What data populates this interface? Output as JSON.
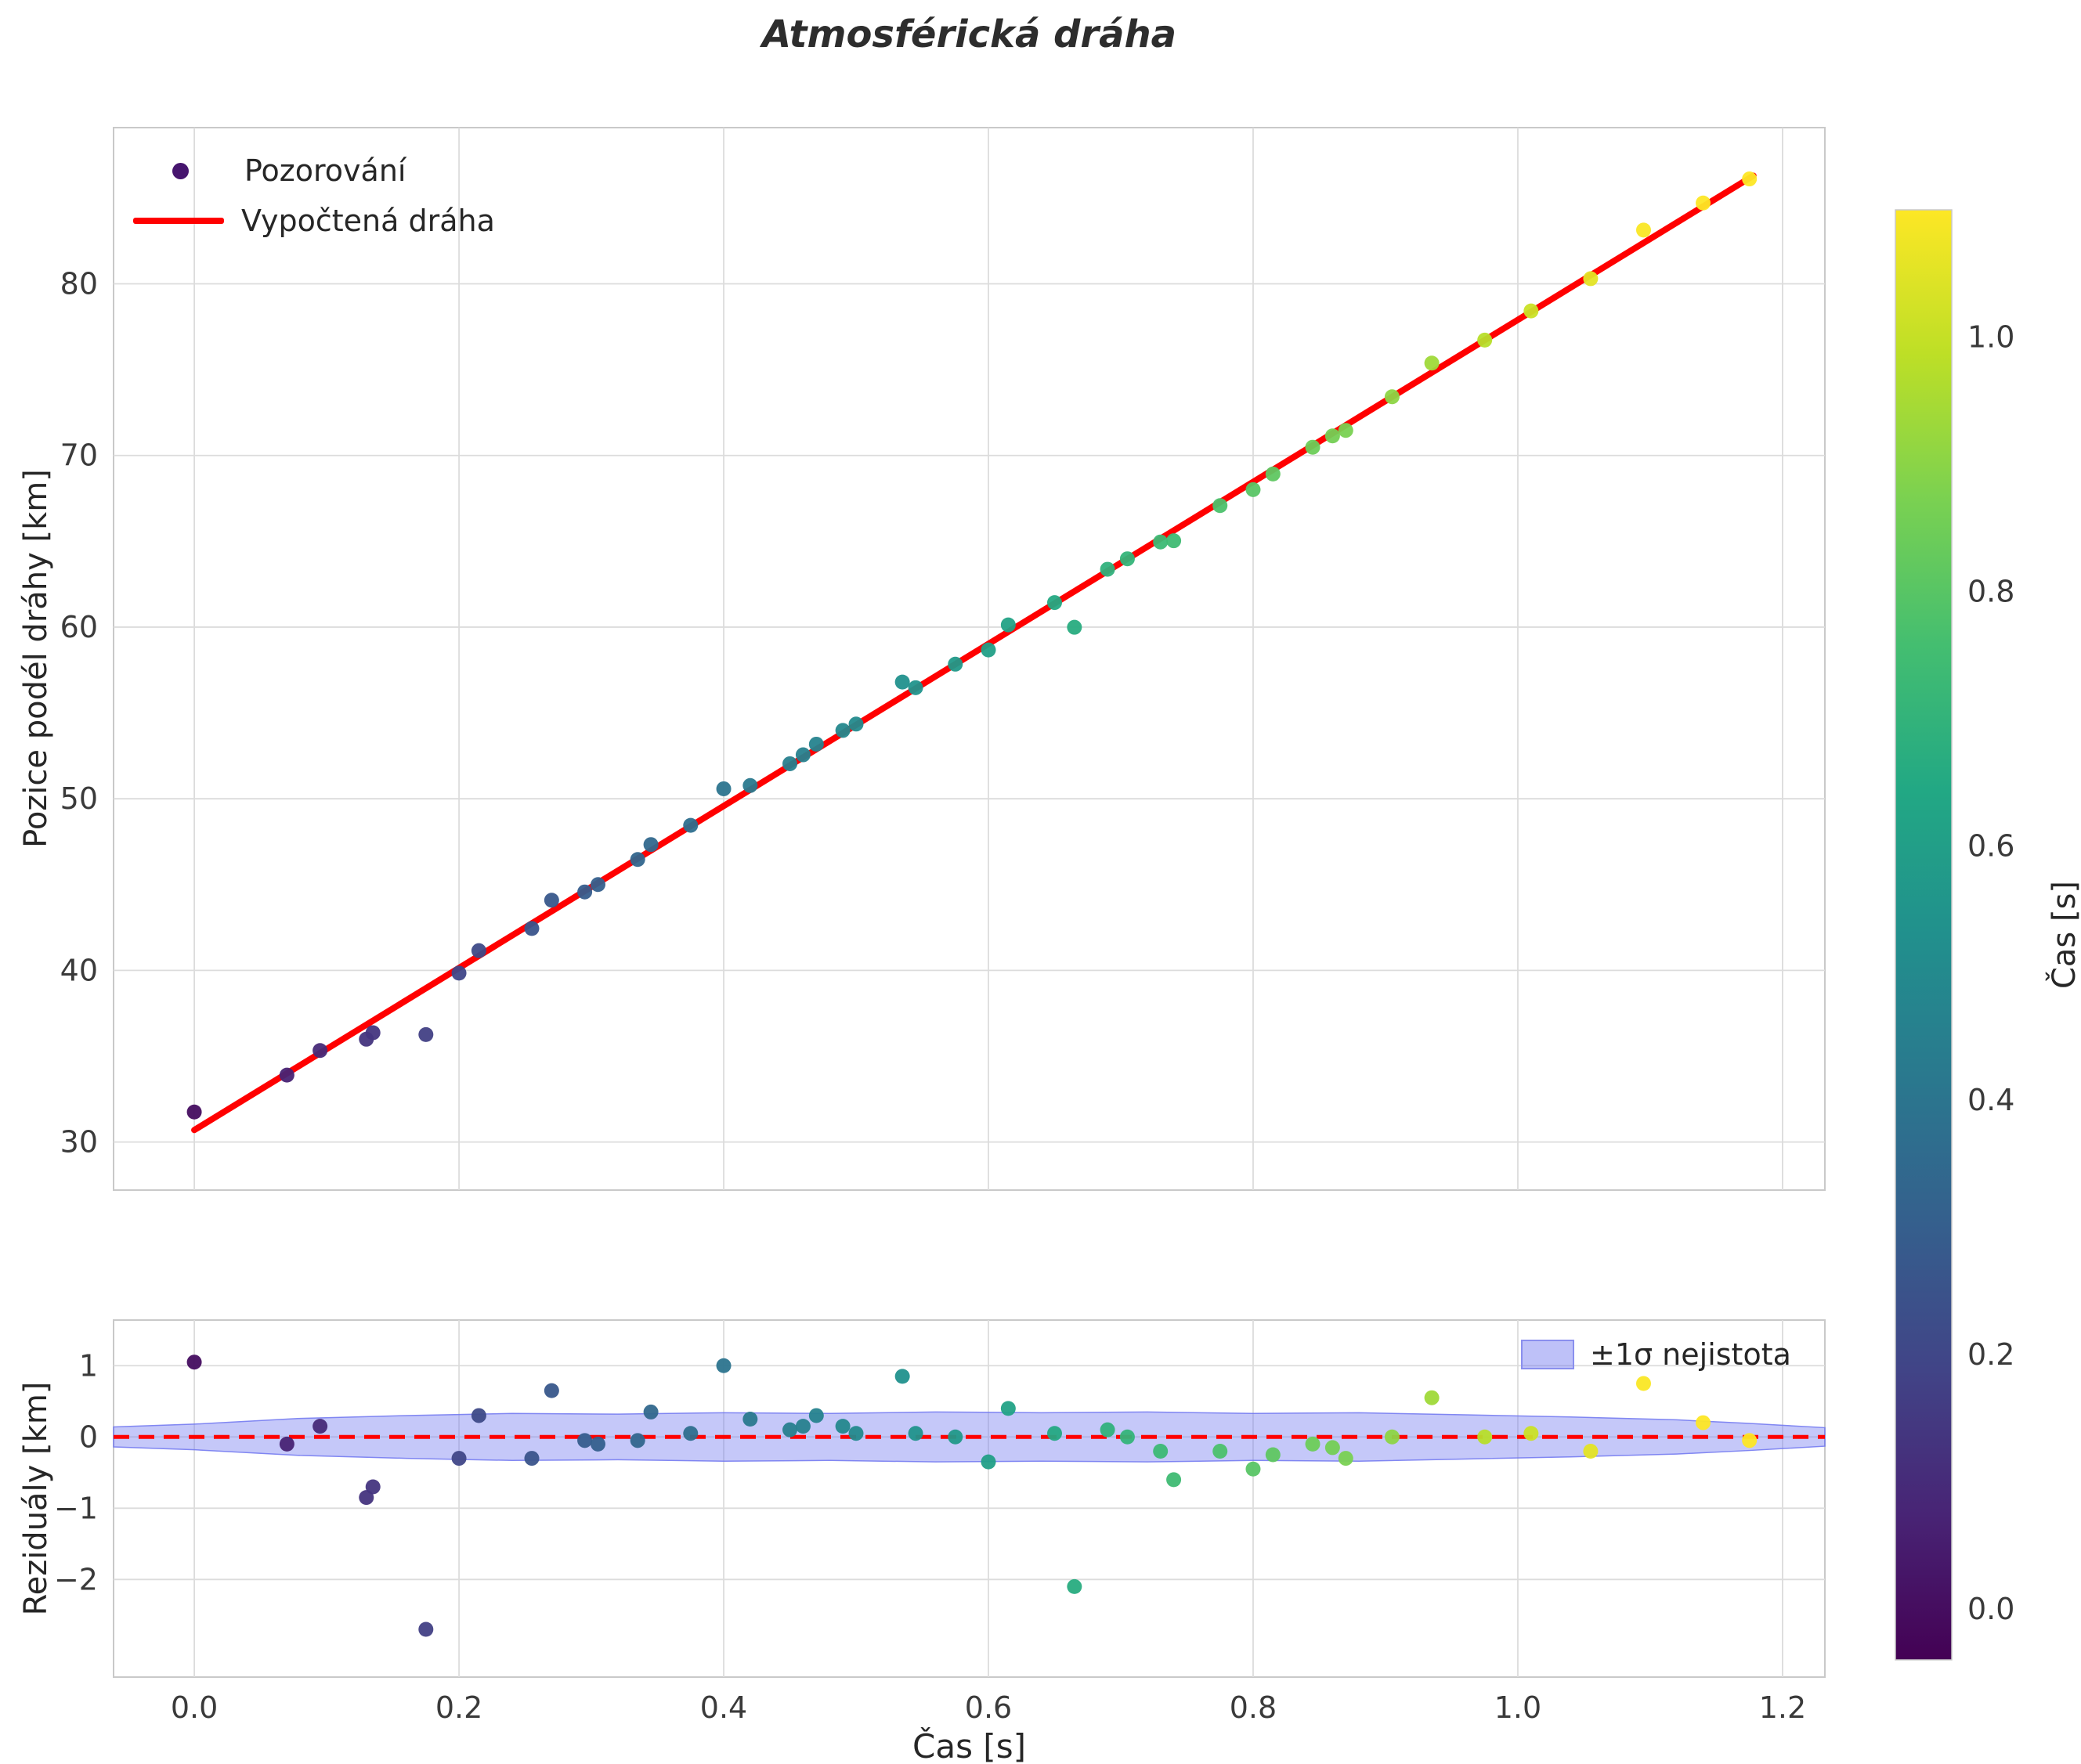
{
  "title": "Atmosférická dráha",
  "colors": {
    "fit_line": "#ff0000",
    "zero_line": "#ff0000",
    "band": "#6f76f0",
    "grid": "#dcdcdc",
    "spine": "#c9c9c9",
    "tick_text": "#3a3a3a",
    "label_text": "#262626",
    "legend_marker": "#46156e"
  },
  "colorbar": {
    "label": "Čas [s]",
    "ticks": [
      0.0,
      0.2,
      0.4,
      0.6,
      0.8,
      1.0
    ],
    "vmin": -0.04,
    "vmax": 1.1,
    "colormap": "viridis"
  },
  "chart_data": [
    {
      "id": "trajectory",
      "type": "scatter",
      "title": "Atmosférická dráha",
      "xlabel": "",
      "ylabel": "Pozice podél dráhy [km]",
      "xlim": [
        -0.061,
        1.232
      ],
      "ylim": [
        27.2,
        89.1
      ],
      "xticks": [
        0.0,
        0.2,
        0.4,
        0.6,
        0.8,
        1.0,
        1.2
      ],
      "yticks": [
        30,
        40,
        50,
        60,
        70,
        80
      ],
      "grid": true,
      "legend_position": "upper left",
      "series": [
        {
          "name": "Pozorování",
          "type": "scatter",
          "colormap": "viridis",
          "color_by": "t",
          "t": [
            0.0,
            0.07,
            0.095,
            0.13,
            0.135,
            0.175,
            0.2,
            0.215,
            0.255,
            0.27,
            0.295,
            0.305,
            0.335,
            0.345,
            0.375,
            0.4,
            0.42,
            0.45,
            0.46,
            0.47,
            0.49,
            0.5,
            0.535,
            0.545,
            0.575,
            0.6,
            0.615,
            0.65,
            0.665,
            0.69,
            0.705,
            0.73,
            0.74,
            0.775,
            0.8,
            0.815,
            0.845,
            0.86,
            0.87,
            0.905,
            0.935,
            0.975,
            1.01,
            1.055,
            1.095,
            1.14,
            1.175
          ],
          "y": [
            31.75,
            33.9,
            35.33,
            35.99,
            36.37,
            36.26,
            39.84,
            41.15,
            42.44,
            44.09,
            44.57,
            45.0,
            46.46,
            47.33,
            48.45,
            50.58,
            50.77,
            52.04,
            52.56,
            53.18,
            53.98,
            54.35,
            56.8,
            56.47,
            57.84,
            58.67,
            60.13,
            61.43,
            59.99,
            63.37,
            63.98,
            64.96,
            65.03,
            67.08,
            68.01,
            68.92,
            70.48,
            71.14,
            71.46,
            73.42,
            75.38,
            76.72,
            78.42,
            80.3,
            83.13,
            84.71,
            86.11
          ]
        },
        {
          "name": "Vypočtená dráha",
          "type": "line",
          "color": "#ff0000",
          "fit": {
            "intercept": 30.7,
            "slope": 47.2
          },
          "t": [
            0.0,
            1.178
          ],
          "y": [
            30.7,
            86.3
          ]
        }
      ]
    },
    {
      "id": "residuals",
      "type": "scatter",
      "title": "",
      "xlabel": "Čas [s]",
      "ylabel": "Reziduály [km]",
      "xlim": [
        -0.061,
        1.232
      ],
      "ylim": [
        -3.37,
        1.64
      ],
      "xticks": [
        0.0,
        0.2,
        0.4,
        0.6,
        0.8,
        1.0,
        1.2
      ],
      "yticks": [
        1,
        0,
        -1,
        -2
      ],
      "grid": true,
      "zero_line": {
        "y": 0,
        "style": "dashed",
        "color": "#ff0000"
      },
      "band": {
        "name": "±1σ nejistota",
        "t": [
          -0.061,
          0.0,
          0.08,
          0.16,
          0.24,
          0.32,
          0.4,
          0.48,
          0.56,
          0.64,
          0.72,
          0.8,
          0.88,
          0.96,
          1.04,
          1.12,
          1.175,
          1.232
        ],
        "sigma": [
          0.14,
          0.18,
          0.26,
          0.3,
          0.33,
          0.32,
          0.34,
          0.33,
          0.35,
          0.34,
          0.35,
          0.33,
          0.34,
          0.31,
          0.28,
          0.24,
          0.19,
          0.13
        ]
      },
      "series": [
        {
          "name": "Reziduály",
          "type": "scatter",
          "colormap": "viridis",
          "color_by": "t",
          "t": [
            0.0,
            0.07,
            0.095,
            0.13,
            0.135,
            0.175,
            0.2,
            0.215,
            0.255,
            0.27,
            0.295,
            0.305,
            0.335,
            0.345,
            0.375,
            0.4,
            0.42,
            0.45,
            0.46,
            0.47,
            0.49,
            0.5,
            0.535,
            0.545,
            0.575,
            0.6,
            0.615,
            0.65,
            0.665,
            0.69,
            0.705,
            0.73,
            0.74,
            0.775,
            0.8,
            0.815,
            0.845,
            0.86,
            0.87,
            0.905,
            0.935,
            0.975,
            1.01,
            1.055,
            1.095,
            1.14,
            1.175
          ],
          "y": [
            1.05,
            -0.1,
            0.15,
            -0.85,
            -0.7,
            -2.7,
            -0.3,
            0.3,
            -0.3,
            0.65,
            -0.05,
            -0.1,
            -0.05,
            0.35,
            0.05,
            1.0,
            0.25,
            0.1,
            0.15,
            0.3,
            0.15,
            0.05,
            0.85,
            0.05,
            0.0,
            -0.35,
            0.4,
            0.05,
            -2.1,
            0.1,
            0.0,
            -0.2,
            -0.6,
            -0.2,
            -0.45,
            -0.25,
            -0.1,
            -0.15,
            -0.3,
            0.0,
            0.55,
            0.0,
            0.05,
            -0.2,
            0.75,
            0.2,
            -0.05
          ]
        }
      ]
    }
  ]
}
